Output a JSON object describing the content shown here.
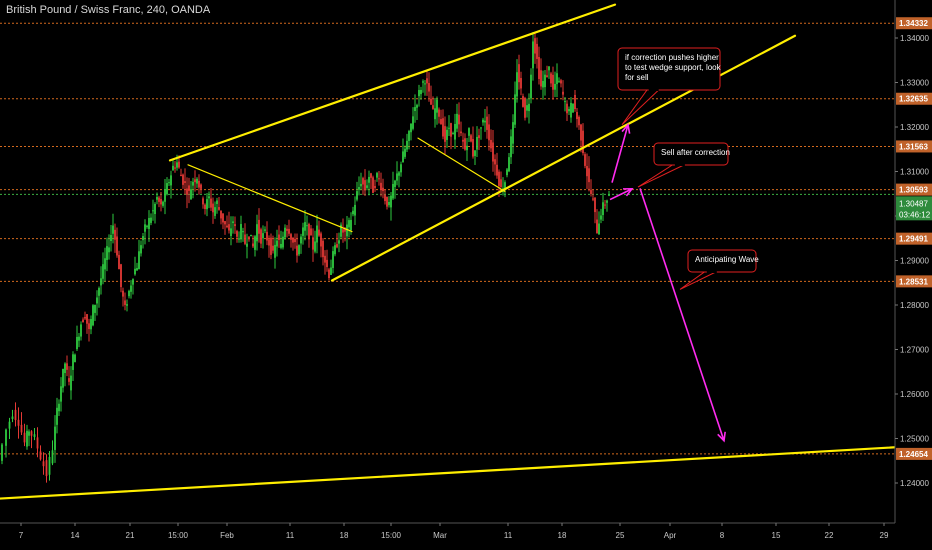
{
  "header": {
    "symbol_title": "British Pound / Swiss Franc, 240, OANDA"
  },
  "colors": {
    "background": "#000000",
    "up_candle": "#2ecc40",
    "down_candle": "#e53935",
    "trendline": "#ffee00",
    "arrow": "#ff2cf0",
    "level_line": "#d2691e",
    "level_tag": "#c0622a",
    "current_tag": "#2e8b3c"
  },
  "chart_data": {
    "type": "candlestick",
    "title": "British Pound / Swiss Franc, 240, OANDA",
    "timeframe": "240",
    "ylim": [
      1.232,
      1.3455
    ],
    "y_ticks": [
      "1.24000",
      "1.25000",
      "1.26000",
      "1.27000",
      "1.28000",
      "1.29000",
      "1.30000",
      "1.31000",
      "1.32000",
      "1.33000",
      "1.34000"
    ],
    "x_ticks": [
      "7",
      "14",
      "21",
      "15:00",
      "Feb",
      "11",
      "18",
      "15:00",
      "Mar",
      "11",
      "18",
      "25",
      "Apr",
      "8",
      "15",
      "22",
      "29"
    ],
    "price_levels": [
      "1.34332",
      "1.32635",
      "1.31563",
      "1.30593",
      "1.29491",
      "1.28531",
      "1.24654"
    ],
    "current_price": "1.30487",
    "countdown": "03:46:12",
    "close_path": [
      [
        0,
        1.245
      ],
      [
        8,
        1.252
      ],
      [
        14,
        1.256
      ],
      [
        20,
        1.254
      ],
      [
        26,
        1.249
      ],
      [
        30,
        1.252
      ],
      [
        36,
        1.25
      ],
      [
        42,
        1.246
      ],
      [
        48,
        1.242
      ],
      [
        54,
        1.248
      ],
      [
        58,
        1.256
      ],
      [
        62,
        1.262
      ],
      [
        66,
        1.267
      ],
      [
        70,
        1.262
      ],
      [
        74,
        1.268
      ],
      [
        78,
        1.272
      ],
      [
        82,
        1.276
      ],
      [
        86,
        1.278
      ],
      [
        90,
        1.274
      ],
      [
        94,
        1.279
      ],
      [
        98,
        1.282
      ],
      [
        102,
        1.286
      ],
      [
        106,
        1.29
      ],
      [
        110,
        1.294
      ],
      [
        114,
        1.298
      ],
      [
        118,
        1.292
      ],
      [
        122,
        1.284
      ],
      [
        126,
        1.279
      ],
      [
        130,
        1.283
      ],
      [
        134,
        1.287
      ],
      [
        138,
        1.289
      ],
      [
        142,
        1.294
      ],
      [
        146,
        1.297
      ],
      [
        150,
        1.299
      ],
      [
        154,
        1.301
      ],
      [
        158,
        1.304
      ],
      [
        162,
        1.302
      ],
      [
        166,
        1.305
      ],
      [
        170,
        1.308
      ],
      [
        174,
        1.311
      ],
      [
        178,
        1.312
      ],
      [
        182,
        1.309
      ],
      [
        186,
        1.307
      ],
      [
        190,
        1.305
      ],
      [
        194,
        1.308
      ],
      [
        198,
        1.309
      ],
      [
        202,
        1.305
      ],
      [
        206,
        1.302
      ],
      [
        210,
        1.304
      ],
      [
        214,
        1.301
      ],
      [
        218,
        1.303
      ],
      [
        222,
        1.3
      ],
      [
        226,
        1.298
      ],
      [
        230,
        1.296
      ],
      [
        234,
        1.299
      ],
      [
        238,
        1.295
      ],
      [
        242,
        1.297
      ],
      [
        246,
        1.294
      ],
      [
        250,
        1.296
      ],
      [
        254,
        1.293
      ],
      [
        258,
        1.298
      ],
      [
        262,
        1.295
      ],
      [
        266,
        1.296
      ],
      [
        270,
        1.294
      ],
      [
        274,
        1.291
      ],
      [
        278,
        1.295
      ],
      [
        282,
        1.293
      ],
      [
        286,
        1.298
      ],
      [
        290,
        1.297
      ],
      [
        294,
        1.294
      ],
      [
        298,
        1.292
      ],
      [
        302,
        1.295
      ],
      [
        306,
        1.298
      ],
      [
        310,
        1.296
      ],
      [
        314,
        1.293
      ],
      [
        318,
        1.297
      ],
      [
        322,
        1.294
      ],
      [
        326,
        1.29
      ],
      [
        330,
        1.287
      ],
      [
        334,
        1.291
      ],
      [
        338,
        1.294
      ],
      [
        342,
        1.297
      ],
      [
        346,
        1.296
      ],
      [
        350,
        1.298
      ],
      [
        354,
        1.301
      ],
      [
        358,
        1.305
      ],
      [
        362,
        1.308
      ],
      [
        366,
        1.306
      ],
      [
        370,
        1.309
      ],
      [
        374,
        1.306
      ],
      [
        378,
        1.309
      ],
      [
        382,
        1.307
      ],
      [
        386,
        1.304
      ],
      [
        390,
        1.302
      ],
      [
        394,
        1.306
      ],
      [
        398,
        1.309
      ],
      [
        402,
        1.312
      ],
      [
        406,
        1.315
      ],
      [
        410,
        1.318
      ],
      [
        414,
        1.323
      ],
      [
        418,
        1.326
      ],
      [
        422,
        1.329
      ],
      [
        426,
        1.331
      ],
      [
        430,
        1.327
      ],
      [
        434,
        1.323
      ],
      [
        438,
        1.325
      ],
      [
        442,
        1.321
      ],
      [
        446,
        1.317
      ],
      [
        450,
        1.32
      ],
      [
        454,
        1.318
      ],
      [
        458,
        1.322
      ],
      [
        462,
        1.318
      ],
      [
        466,
        1.315
      ],
      [
        470,
        1.319
      ],
      [
        474,
        1.314
      ],
      [
        478,
        1.317
      ],
      [
        482,
        1.32
      ],
      [
        486,
        1.322
      ],
      [
        490,
        1.318
      ],
      [
        494,
        1.313
      ],
      [
        498,
        1.31
      ],
      [
        502,
        1.306
      ],
      [
        506,
        1.308
      ],
      [
        510,
        1.314
      ],
      [
        514,
        1.32
      ],
      [
        518,
        1.333
      ],
      [
        522,
        1.328
      ],
      [
        526,
        1.323
      ],
      [
        530,
        1.326
      ],
      [
        534,
        1.34
      ],
      [
        538,
        1.335
      ],
      [
        542,
        1.329
      ],
      [
        546,
        1.331
      ],
      [
        550,
        1.333
      ],
      [
        554,
        1.328
      ],
      [
        558,
        1.331
      ],
      [
        562,
        1.329
      ],
      [
        566,
        1.325
      ],
      [
        570,
        1.323
      ],
      [
        574,
        1.326
      ],
      [
        578,
        1.322
      ],
      [
        582,
        1.318
      ],
      [
        586,
        1.312
      ],
      [
        590,
        1.307
      ],
      [
        594,
        1.303
      ],
      [
        598,
        1.297
      ],
      [
        602,
        1.301
      ],
      [
        606,
        1.303
      ],
      [
        610,
        1.305
      ]
    ],
    "trendlines": [
      {
        "name": "channel-top",
        "from": [
          170,
          1.3125
        ],
        "to": [
          615,
          1.3475
        ]
      },
      {
        "name": "channel-bottom",
        "from": [
          332,
          1.2855
        ],
        "to": [
          795,
          1.3405
        ]
      },
      {
        "name": "wedge-upper",
        "from": [
          188,
          1.3115
        ],
        "to": [
          352,
          1.2965
        ]
      },
      {
        "name": "wedge-lower",
        "from": [
          418,
          1.3175
        ],
        "to": [
          505,
          1.3055
        ]
      },
      {
        "name": "long-support",
        "from": [
          0,
          1.2365
        ],
        "to": [
          932,
          1.2485
        ]
      }
    ],
    "arrows": [
      {
        "name": "arrow-up-1",
        "from": [
          612,
          1.3075
        ],
        "to": [
          628,
          1.3205
        ]
      },
      {
        "name": "arrow-up-2",
        "from": [
          610,
          1.3037
        ],
        "to": [
          632,
          1.3061
        ]
      },
      {
        "name": "arrow-down",
        "from": [
          640,
          1.3062
        ],
        "to": [
          724,
          1.2495
        ]
      }
    ],
    "annotations": [
      {
        "id": "note-wedge",
        "lines": [
          "if correction pushes higher",
          "to test wedge support, look",
          "for sell"
        ],
        "pointer": [
          622,
          1.3205
        ]
      },
      {
        "id": "note-sell",
        "lines": [
          "Sell after correction"
        ],
        "pointer": [
          638,
          1.3065
        ]
      },
      {
        "id": "note-wave",
        "lines": [
          "Anticipating Wave"
        ],
        "pointer": [
          680,
          1.2835
        ]
      }
    ]
  }
}
